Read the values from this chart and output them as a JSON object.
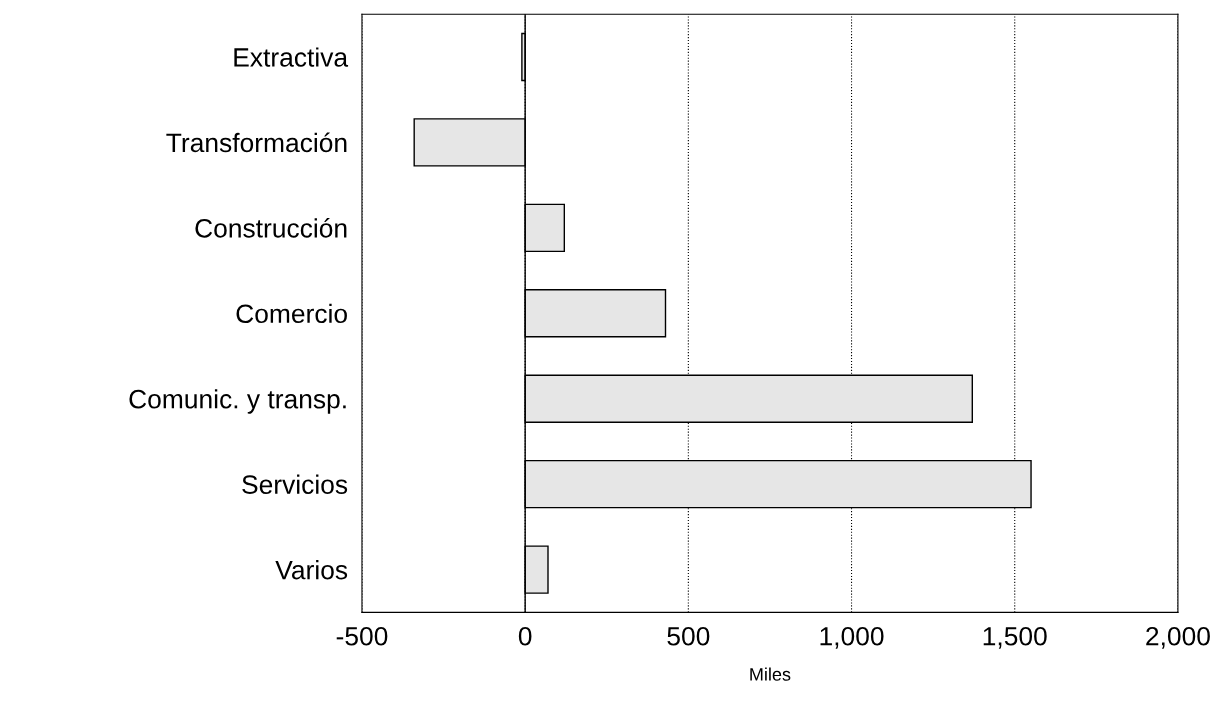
{
  "chart_data": {
    "type": "bar",
    "orientation": "horizontal",
    "xlabel": "Miles",
    "categories": [
      "Extractiva",
      "Transformación",
      "Construcción",
      "Comercio",
      "Comunic. y transp.",
      "Servicios",
      "Varios"
    ],
    "values": [
      -10,
      -340,
      120,
      430,
      1370,
      1550,
      70
    ],
    "color": "#e6e6e6",
    "xlim": [
      -500,
      2000
    ],
    "xticks": [
      -500,
      0,
      500,
      {
        "value": 1000,
        "label": "1,000"
      },
      {
        "value": 1500,
        "label": "1,500"
      },
      {
        "value": 2000,
        "label": "2,000"
      }
    ],
    "grid": "x"
  }
}
